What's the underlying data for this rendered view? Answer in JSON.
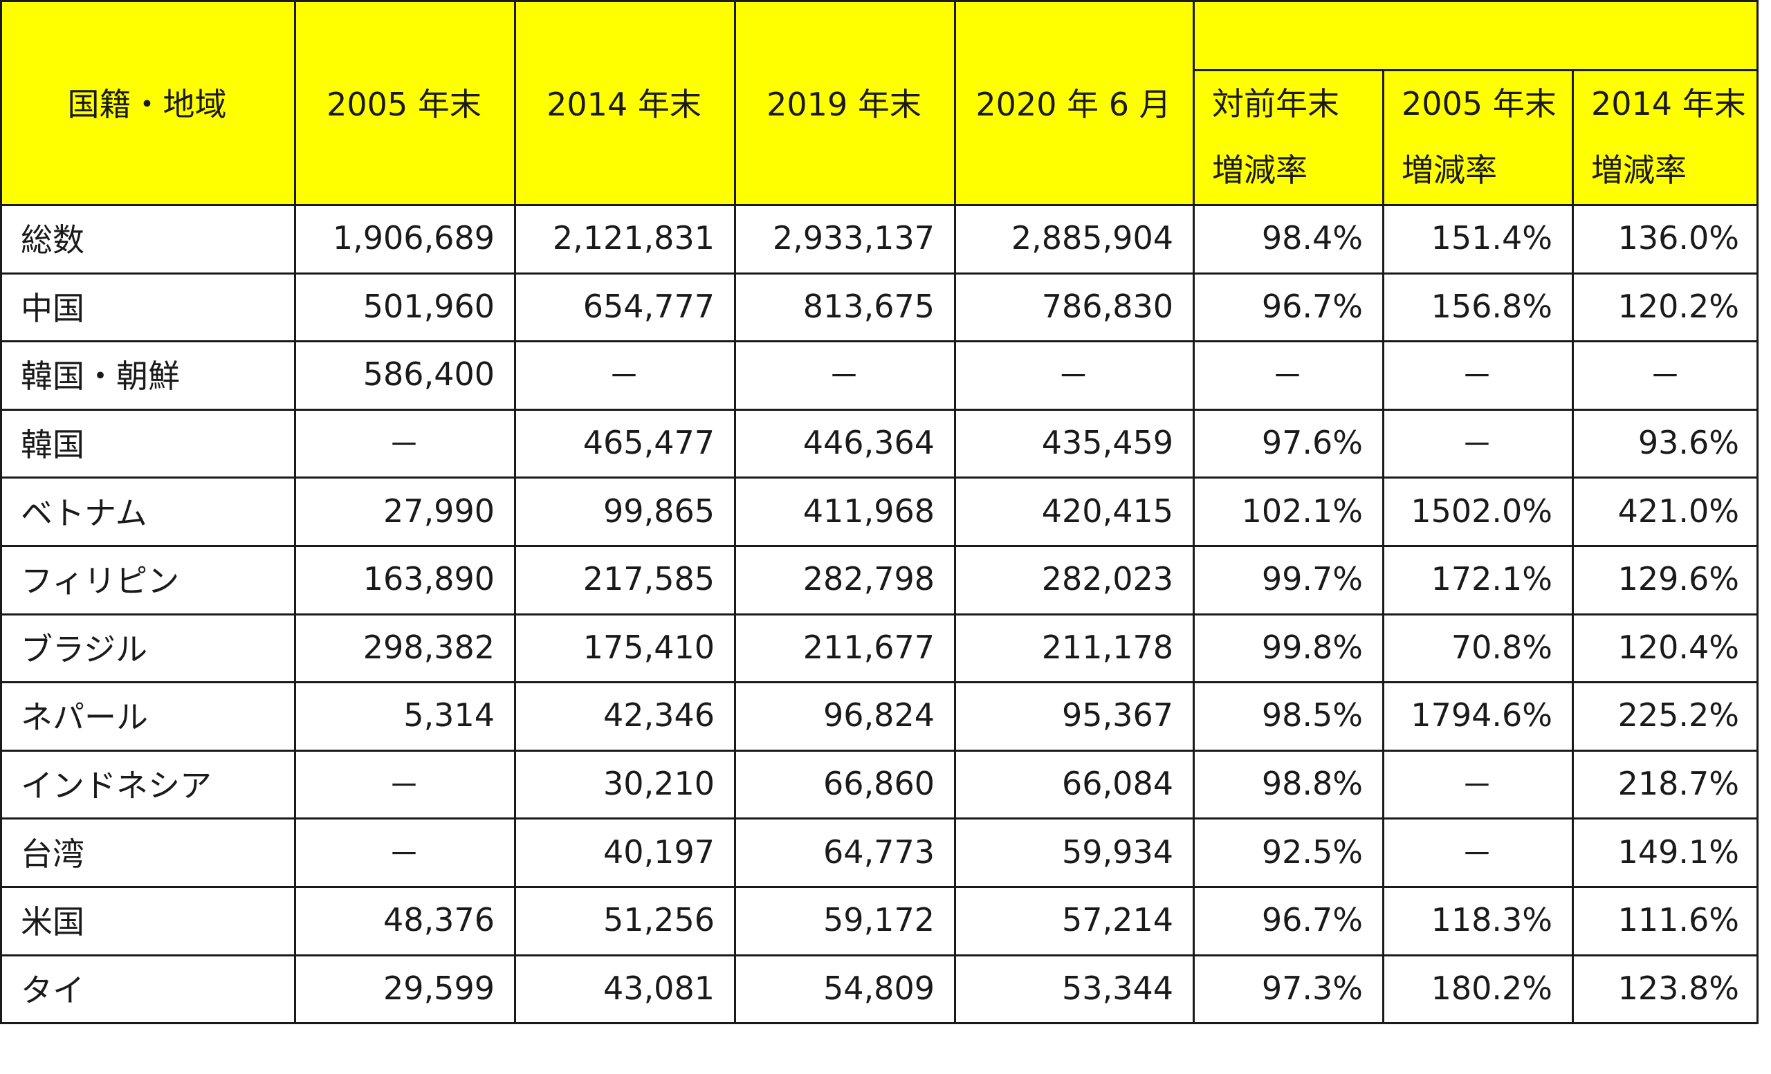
{
  "table": {
    "header": {
      "country": "国籍・地域",
      "y2005": "2005 年末",
      "y2014": "2014 年末",
      "y2019": "2019 年末",
      "y2020": "2020 年 6 月",
      "rates": [
        {
          "line1": "対前年末",
          "line2": "増減率"
        },
        {
          "line1": "2005 年末",
          "line2": "増減率"
        },
        {
          "line1": "2014 年末",
          "line2": "増減率"
        }
      ]
    },
    "rows": [
      [
        "総数",
        "1,906,689",
        "2,121,831",
        "2,933,137",
        "2,885,904",
        "98.4%",
        "151.4%",
        "136.0%"
      ],
      [
        "中国",
        "501,960",
        "654,777",
        "813,675",
        "786,830",
        "96.7%",
        "156.8%",
        "120.2%"
      ],
      [
        "韓国・朝鮮",
        "586,400",
        "－",
        "－",
        "－",
        "－",
        "－",
        "－"
      ],
      [
        "韓国",
        "－",
        "465,477",
        "446,364",
        "435,459",
        "97.6%",
        "－",
        "93.6%"
      ],
      [
        "ベトナム",
        "27,990",
        "99,865",
        "411,968",
        "420,415",
        "102.1%",
        "1502.0%",
        "421.0%"
      ],
      [
        "フィリピン",
        "163,890",
        "217,585",
        "282,798",
        "282,023",
        "99.7%",
        "172.1%",
        "129.6%"
      ],
      [
        "ブラジル",
        "298,382",
        "175,410",
        "211,677",
        "211,178",
        "99.8%",
        "70.8%",
        "120.4%"
      ],
      [
        "ネパール",
        "5,314",
        "42,346",
        "96,824",
        "95,367",
        "98.5%",
        "1794.6%",
        "225.2%"
      ],
      [
        "インドネシア",
        "－",
        "30,210",
        "66,860",
        "66,084",
        "98.8%",
        "－",
        "218.7%"
      ],
      [
        "台湾",
        "－",
        "40,197",
        "64,773",
        "59,934",
        "92.5%",
        "－",
        "149.1%"
      ],
      [
        "米国",
        "48,376",
        "51,256",
        "59,172",
        "57,214",
        "96.7%",
        "118.3%",
        "111.6%"
      ],
      [
        "タイ",
        "29,599",
        "43,081",
        "54,809",
        "53,344",
        "97.3%",
        "180.2%",
        "123.8%"
      ]
    ]
  },
  "colors": {
    "header_background": "#ffff00",
    "grid_line": "#1a1a1a",
    "text": "#1a1a1a"
  }
}
